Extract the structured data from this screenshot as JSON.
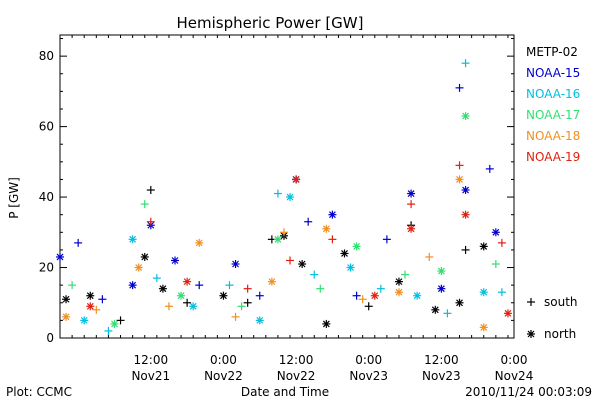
{
  "chart_data": {
    "type": "scatter",
    "title": "Hemispheric Power [GW]",
    "xlabel": "Date and Time",
    "ylabel": "P [GW]",
    "ylim": [
      0,
      86
    ],
    "xlim": [
      "2010-11-20 21:00",
      "2010-11-24 00:00"
    ],
    "grid": false,
    "legend_placement": "right",
    "y_ticks": [
      "0",
      "20",
      "40",
      "60",
      "80"
    ],
    "x_ticks": [
      {
        "t": "2010-11-21 12:00",
        "time": "12:00",
        "date": "Nov21"
      },
      {
        "t": "2010-11-22 00:00",
        "time": "0:00",
        "date": "Nov22"
      },
      {
        "t": "2010-11-22 12:00",
        "time": "12:00",
        "date": "Nov22"
      },
      {
        "t": "2010-11-23 00:00",
        "time": "0:00",
        "date": "Nov23"
      },
      {
        "t": "2010-11-23 12:00",
        "time": "12:00",
        "date": "Nov23"
      },
      {
        "t": "2010-11-24 00:00",
        "time": "0:00",
        "date": "Nov24"
      }
    ],
    "marker_legend": [
      {
        "glyph": "+",
        "label": "south"
      },
      {
        "glyph": "*",
        "label": "north"
      }
    ],
    "series": [
      {
        "name": "METP-02",
        "color": "#000000",
        "points": [
          {
            "x": "2010-11-20 22:00",
            "y": 11,
            "m": "north"
          },
          {
            "x": "2010-11-21 02:00",
            "y": 12,
            "m": "north"
          },
          {
            "x": "2010-11-21 07:00",
            "y": 5,
            "m": "south"
          },
          {
            "x": "2010-11-21 11:00",
            "y": 23,
            "m": "north"
          },
          {
            "x": "2010-11-21 12:00",
            "y": 42,
            "m": "south"
          },
          {
            "x": "2010-11-21 14:00",
            "y": 14,
            "m": "north"
          },
          {
            "x": "2010-11-21 18:00",
            "y": 10,
            "m": "south"
          },
          {
            "x": "2010-11-22 00:00",
            "y": 12,
            "m": "north"
          },
          {
            "x": "2010-11-22 04:00",
            "y": 10,
            "m": "south"
          },
          {
            "x": "2010-11-22 08:00",
            "y": 28,
            "m": "south"
          },
          {
            "x": "2010-11-22 10:00",
            "y": 29,
            "m": "north"
          },
          {
            "x": "2010-11-22 12:00",
            "y": 45,
            "m": "south"
          },
          {
            "x": "2010-11-22 13:00",
            "y": 21,
            "m": "north"
          },
          {
            "x": "2010-11-22 17:00",
            "y": 4,
            "m": "north"
          },
          {
            "x": "2010-11-22 20:00",
            "y": 24,
            "m": "north"
          },
          {
            "x": "2010-11-23 00:00",
            "y": 9,
            "m": "south"
          },
          {
            "x": "2010-11-23 05:00",
            "y": 16,
            "m": "north"
          },
          {
            "x": "2010-11-23 07:00",
            "y": 32,
            "m": "south"
          },
          {
            "x": "2010-11-23 11:00",
            "y": 8,
            "m": "north"
          },
          {
            "x": "2010-11-23 15:00",
            "y": 10,
            "m": "north"
          },
          {
            "x": "2010-11-23 16:00",
            "y": 25,
            "m": "south"
          },
          {
            "x": "2010-11-23 19:00",
            "y": 26,
            "m": "north"
          }
        ]
      },
      {
        "name": "NOAA-15",
        "color": "#0000cc",
        "points": [
          {
            "x": "2010-11-20 21:00",
            "y": 23,
            "m": "north"
          },
          {
            "x": "2010-11-21 00:00",
            "y": 27,
            "m": "south"
          },
          {
            "x": "2010-11-21 04:00",
            "y": 11,
            "m": "south"
          },
          {
            "x": "2010-11-21 09:00",
            "y": 15,
            "m": "north"
          },
          {
            "x": "2010-11-21 12:00",
            "y": 32,
            "m": "north"
          },
          {
            "x": "2010-11-21 16:00",
            "y": 22,
            "m": "north"
          },
          {
            "x": "2010-11-21 20:00",
            "y": 15,
            "m": "south"
          },
          {
            "x": "2010-11-22 02:00",
            "y": 21,
            "m": "north"
          },
          {
            "x": "2010-11-22 06:00",
            "y": 12,
            "m": "south"
          },
          {
            "x": "2010-11-22 12:00",
            "y": 45,
            "m": "north"
          },
          {
            "x": "2010-11-22 14:00",
            "y": 33,
            "m": "south"
          },
          {
            "x": "2010-11-22 18:00",
            "y": 35,
            "m": "north"
          },
          {
            "x": "2010-11-22 22:00",
            "y": 12,
            "m": "south"
          },
          {
            "x": "2010-11-23 03:00",
            "y": 28,
            "m": "south"
          },
          {
            "x": "2010-11-23 07:00",
            "y": 41,
            "m": "north"
          },
          {
            "x": "2010-11-23 12:00",
            "y": 14,
            "m": "north"
          },
          {
            "x": "2010-11-23 15:00",
            "y": 71,
            "m": "south"
          },
          {
            "x": "2010-11-23 16:00",
            "y": 42,
            "m": "north"
          },
          {
            "x": "2010-11-23 20:00",
            "y": 48,
            "m": "south"
          },
          {
            "x": "2010-11-23 21:00",
            "y": 30,
            "m": "north"
          }
        ]
      },
      {
        "name": "NOAA-16",
        "color": "#00c0e0",
        "points": [
          {
            "x": "2010-11-21 01:00",
            "y": 5,
            "m": "north"
          },
          {
            "x": "2010-11-21 05:00",
            "y": 2,
            "m": "south"
          },
          {
            "x": "2010-11-21 09:00",
            "y": 28,
            "m": "north"
          },
          {
            "x": "2010-11-21 13:00",
            "y": 17,
            "m": "south"
          },
          {
            "x": "2010-11-21 19:00",
            "y": 9,
            "m": "north"
          },
          {
            "x": "2010-11-22 01:00",
            "y": 15,
            "m": "south"
          },
          {
            "x": "2010-11-22 06:00",
            "y": 5,
            "m": "north"
          },
          {
            "x": "2010-11-22 09:00",
            "y": 41,
            "m": "south"
          },
          {
            "x": "2010-11-22 11:00",
            "y": 40,
            "m": "north"
          },
          {
            "x": "2010-11-22 15:00",
            "y": 18,
            "m": "south"
          },
          {
            "x": "2010-11-22 21:00",
            "y": 20,
            "m": "north"
          },
          {
            "x": "2010-11-23 02:00",
            "y": 14,
            "m": "south"
          },
          {
            "x": "2010-11-23 08:00",
            "y": 12,
            "m": "north"
          },
          {
            "x": "2010-11-23 13:00",
            "y": 7,
            "m": "south"
          },
          {
            "x": "2010-11-23 16:00",
            "y": 78,
            "m": "south"
          },
          {
            "x": "2010-11-23 19:00",
            "y": 13,
            "m": "north"
          },
          {
            "x": "2010-11-23 22:00",
            "y": 13,
            "m": "south"
          }
        ]
      },
      {
        "name": "NOAA-17",
        "color": "#30e070",
        "points": [
          {
            "x": "2010-11-20 23:00",
            "y": 15,
            "m": "south"
          },
          {
            "x": "2010-11-21 06:00",
            "y": 4,
            "m": "north"
          },
          {
            "x": "2010-11-21 11:00",
            "y": 38,
            "m": "south"
          },
          {
            "x": "2010-11-21 17:00",
            "y": 12,
            "m": "north"
          },
          {
            "x": "2010-11-22 03:00",
            "y": 9,
            "m": "south"
          },
          {
            "x": "2010-11-22 09:00",
            "y": 28,
            "m": "north"
          },
          {
            "x": "2010-11-22 16:00",
            "y": 14,
            "m": "south"
          },
          {
            "x": "2010-11-22 22:00",
            "y": 26,
            "m": "north"
          },
          {
            "x": "2010-11-23 06:00",
            "y": 18,
            "m": "south"
          },
          {
            "x": "2010-11-23 12:00",
            "y": 19,
            "m": "north"
          },
          {
            "x": "2010-11-23 16:00",
            "y": 63,
            "m": "north"
          },
          {
            "x": "2010-11-23 21:00",
            "y": 21,
            "m": "south"
          }
        ]
      },
      {
        "name": "NOAA-18",
        "color": "#f09020",
        "points": [
          {
            "x": "2010-11-20 22:00",
            "y": 6,
            "m": "north"
          },
          {
            "x": "2010-11-21 03:00",
            "y": 8,
            "m": "south"
          },
          {
            "x": "2010-11-21 10:00",
            "y": 20,
            "m": "north"
          },
          {
            "x": "2010-11-21 15:00",
            "y": 9,
            "m": "south"
          },
          {
            "x": "2010-11-21 20:00",
            "y": 27,
            "m": "north"
          },
          {
            "x": "2010-11-22 02:00",
            "y": 6,
            "m": "south"
          },
          {
            "x": "2010-11-22 08:00",
            "y": 16,
            "m": "north"
          },
          {
            "x": "2010-11-22 10:00",
            "y": 30,
            "m": "south"
          },
          {
            "x": "2010-11-22 17:00",
            "y": 31,
            "m": "north"
          },
          {
            "x": "2010-11-22 23:00",
            "y": 11,
            "m": "south"
          },
          {
            "x": "2010-11-23 05:00",
            "y": 13,
            "m": "north"
          },
          {
            "x": "2010-11-23 10:00",
            "y": 23,
            "m": "south"
          },
          {
            "x": "2010-11-23 15:00",
            "y": 45,
            "m": "north"
          },
          {
            "x": "2010-11-23 19:00",
            "y": 3,
            "m": "north"
          }
        ]
      },
      {
        "name": "NOAA-19",
        "color": "#e02010",
        "points": [
          {
            "x": "2010-11-21 02:00",
            "y": 9,
            "m": "north"
          },
          {
            "x": "2010-11-21 12:00",
            "y": 33,
            "m": "south"
          },
          {
            "x": "2010-11-21 18:00",
            "y": 16,
            "m": "north"
          },
          {
            "x": "2010-11-22 04:00",
            "y": 14,
            "m": "south"
          },
          {
            "x": "2010-11-22 11:00",
            "y": 22,
            "m": "south"
          },
          {
            "x": "2010-11-22 12:00",
            "y": 45,
            "m": "north"
          },
          {
            "x": "2010-11-22 18:00",
            "y": 28,
            "m": "south"
          },
          {
            "x": "2010-11-23 01:00",
            "y": 12,
            "m": "north"
          },
          {
            "x": "2010-11-23 07:00",
            "y": 38,
            "m": "south"
          },
          {
            "x": "2010-11-23 07:00",
            "y": 31,
            "m": "north"
          },
          {
            "x": "2010-11-23 15:00",
            "y": 49,
            "m": "south"
          },
          {
            "x": "2010-11-23 16:00",
            "y": 35,
            "m": "north"
          },
          {
            "x": "2010-11-23 22:00",
            "y": 27,
            "m": "south"
          },
          {
            "x": "2010-11-23 23:00",
            "y": 7,
            "m": "north"
          }
        ]
      }
    ]
  },
  "footer": {
    "left": "Plot: CCMC",
    "center": "Date and Time",
    "right": "2010/11/24 00:03:09"
  }
}
